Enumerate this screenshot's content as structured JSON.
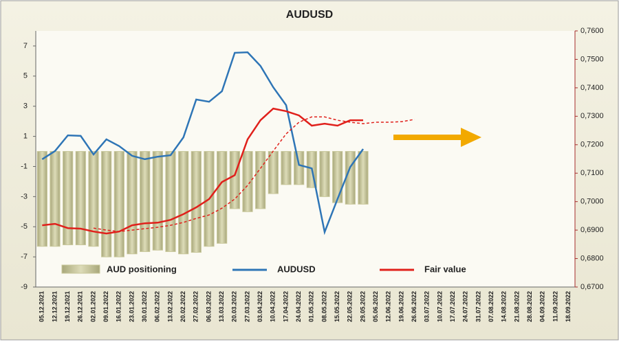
{
  "chart_data": {
    "type": "bar-line",
    "title": "AUDUSD",
    "categories": [
      "05.12.2021",
      "12.12.2021",
      "19.12.2021",
      "26.12.2021",
      "02.01.2022",
      "09.01.2022",
      "16.01.2022",
      "23.01.2022",
      "30.01.2022",
      "06.02.2022",
      "13.02.2022",
      "20.02.2022",
      "27.02.2022",
      "06.03.2022",
      "13.03.2022",
      "20.03.2022",
      "27.03.2022",
      "03.04.2022",
      "10.04.2022",
      "17.04.2022",
      "24.04.2022",
      "01.05.2022",
      "08.05.2022",
      "15.05.2022",
      "22.05.2022",
      "29.05.2022",
      "05.06.2022",
      "12.06.2022",
      "19.06.2022",
      "26.06.2022",
      "03.07.2022",
      "10.07.2022",
      "17.07.2022",
      "24.07.2022",
      "31.07.2022",
      "07.08.2022",
      "14.08.2022",
      "21.08.2022",
      "28.08.2022",
      "04.09.2022",
      "11.09.2022",
      "18.09.2022"
    ],
    "series": [
      {
        "name": "AUD positioning",
        "type": "bar",
        "color": "#c9c89b",
        "values": [
          -6.3,
          -6.3,
          -6.2,
          -6.2,
          -6.3,
          -7.0,
          -7.0,
          -6.8,
          -6.65,
          -6.55,
          -6.65,
          -6.8,
          -6.7,
          -6.3,
          -6.1,
          -3.8,
          -4.0,
          -3.8,
          -2.8,
          -2.2,
          -2.2,
          -2.4,
          -3.0,
          -3.4,
          -3.5,
          -3.5,
          null,
          null,
          null,
          null,
          null,
          null,
          null,
          null,
          null,
          null,
          null,
          null,
          null,
          null,
          null,
          null
        ]
      },
      {
        "name": "AUDUSD",
        "type": "line",
        "axis": "y2",
        "color": "#2e75b6",
        "values": [
          0.7149,
          0.7178,
          0.7233,
          0.7231,
          0.7166,
          0.7219,
          0.7195,
          0.7161,
          0.7149,
          0.7158,
          0.7163,
          0.7226,
          0.7359,
          0.7351,
          0.7388,
          0.7523,
          0.7525,
          0.7477,
          0.7402,
          0.7339,
          0.7129,
          0.7117,
          0.6893,
          0.7009,
          0.7122,
          0.7185,
          null,
          null,
          null,
          null,
          null,
          null,
          null,
          null,
          null,
          null,
          null,
          null,
          null,
          null,
          null,
          null
        ]
      },
      {
        "name": "Fair value",
        "type": "line",
        "axis": "y2",
        "color": "#e0201b",
        "values": [
          0.6917,
          0.6922,
          0.6907,
          0.6905,
          0.6895,
          0.6888,
          0.6895,
          0.6917,
          0.6924,
          0.6926,
          0.6936,
          0.6956,
          0.698,
          0.7009,
          0.7069,
          0.7093,
          0.7219,
          0.7286,
          0.7327,
          0.7318,
          0.7303,
          0.7267,
          0.7274,
          0.7267,
          0.7286,
          0.7286,
          null,
          null,
          null,
          null,
          null,
          null,
          null,
          null,
          null,
          null,
          null,
          null,
          null,
          null,
          null,
          null
        ]
      },
      {
        "type": "line",
        "axis": "y2",
        "color": "#e0201b",
        "style": "dashed",
        "values": [
          null,
          null,
          null,
          null,
          0.6907,
          0.69,
          0.6895,
          0.69,
          0.6905,
          0.691,
          0.6917,
          0.6927,
          0.6941,
          0.6953,
          0.6977,
          0.7009,
          0.7057,
          0.7117,
          0.7178,
          0.7238,
          0.7279,
          0.7298,
          0.7298,
          0.7286,
          0.7279,
          0.7274,
          0.7279,
          0.7279,
          0.7281,
          0.7289,
          null,
          null,
          null,
          null,
          null,
          null,
          null,
          null,
          null,
          null,
          null,
          null
        ]
      }
    ],
    "ylim": [
      -9,
      8
    ],
    "yticks": [
      -9,
      -7,
      -5,
      -3,
      -1,
      1,
      3,
      5,
      7
    ],
    "y2lim": [
      0.67,
      0.76
    ],
    "y2ticks": [
      {
        "value": 0.67,
        "label": "0,6700"
      },
      {
        "value": 0.68,
        "label": "0,6800"
      },
      {
        "value": 0.69,
        "label": "0,6900"
      },
      {
        "value": 0.7,
        "label": "0,7000"
      },
      {
        "value": 0.71,
        "label": "0,7100"
      },
      {
        "value": 0.72,
        "label": "0,7200"
      },
      {
        "value": 0.73,
        "label": "0,7300"
      },
      {
        "value": 0.74,
        "label": "0,7400"
      },
      {
        "value": 0.75,
        "label": "0,7500"
      },
      {
        "value": 0.76,
        "label": "0,7600"
      }
    ],
    "grid": false
  }
}
